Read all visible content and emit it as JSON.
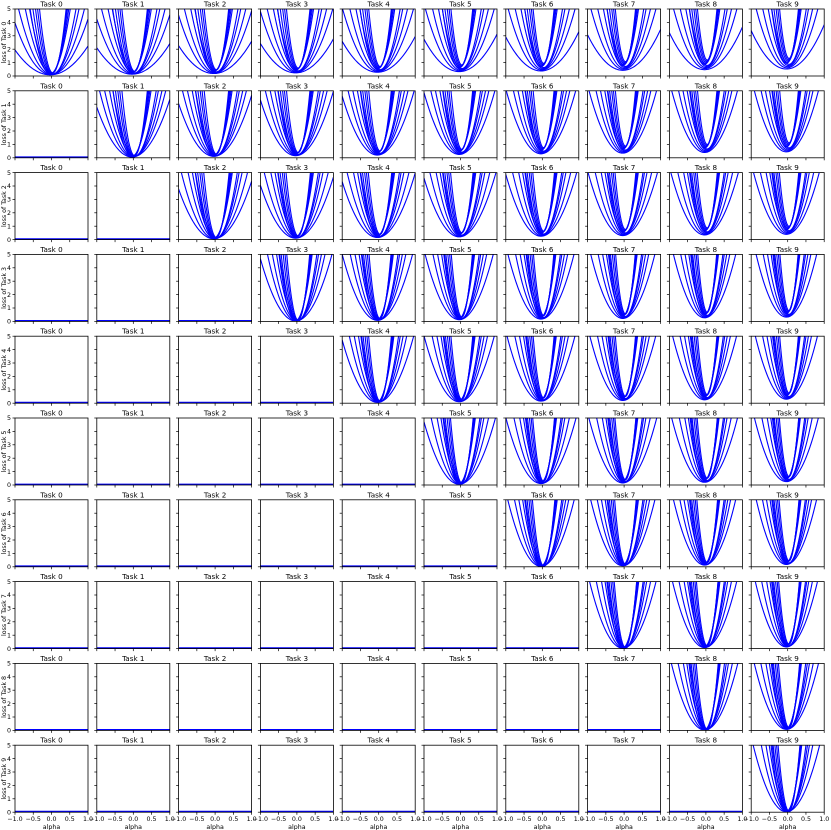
{
  "chart_data": {
    "type": "line",
    "grid_rows": 10,
    "grid_cols": 10,
    "col_titles": [
      "Task 0",
      "Task 1",
      "Task 2",
      "Task 3",
      "Task 4",
      "Task 5",
      "Task 6",
      "Task 7",
      "Task 8",
      "Task 9"
    ],
    "row_ylabels": [
      "loss of Task 0",
      "loss of Task 1",
      "loss of Task 2",
      "loss of Task 3",
      "loss of Task 4",
      "loss of Task 5",
      "loss of Task 6",
      "loss of Task 7",
      "loss of Task 8",
      "loss of Task 9"
    ],
    "xlabel": "alpha",
    "x_ticks": [
      "−1.0",
      "−0.5",
      "0.0",
      "0.5",
      "1.0"
    ],
    "y_ticks": [
      "0",
      "1",
      "2",
      "3",
      "4",
      "5"
    ],
    "xlim": [
      -1.0,
      1.0
    ],
    "ylim": [
      0,
      5
    ],
    "line_color": "#0000ff",
    "grid": false,
    "layout": "lower-triangle panels (column < row) are flat lines at 0; diagonal and upper panels show ~10 parabolic curves each",
    "curve_params_by_row": [
      {
        "min_base": 0.15,
        "curv": [
          2,
          4,
          6,
          9,
          12,
          16,
          20,
          25,
          30,
          36
        ]
      },
      {
        "min_base": 0.1,
        "curv": [
          4,
          6,
          8,
          11,
          14,
          18,
          22,
          27,
          32,
          40
        ]
      },
      {
        "min_base": 0.1,
        "curv": [
          4,
          6,
          9,
          12,
          15,
          19,
          23,
          28,
          33,
          40
        ]
      },
      {
        "min_base": 0.05,
        "curv": [
          5,
          8,
          11,
          15,
          19,
          24,
          29,
          35,
          42,
          50
        ]
      },
      {
        "min_base": 0.1,
        "curv": [
          5,
          8,
          11,
          15,
          19,
          24,
          29,
          35,
          42,
          50
        ]
      },
      {
        "min_base": 0.1,
        "curv": [
          5,
          8,
          12,
          16,
          20,
          25,
          30,
          36,
          43,
          50
        ]
      },
      {
        "min_base": 0.05,
        "curv": [
          6,
          9,
          12,
          16,
          20,
          25,
          31,
          37,
          44,
          52
        ]
      },
      {
        "min_base": 0.05,
        "curv": [
          6,
          9,
          13,
          17,
          21,
          26,
          32,
          38,
          45,
          52
        ]
      },
      {
        "min_base": 0.05,
        "curv": [
          6,
          9,
          13,
          17,
          22,
          27,
          33,
          39,
          46,
          54
        ]
      },
      {
        "min_base": 0.05,
        "curv": [
          6,
          10,
          14,
          18,
          23,
          28,
          34,
          40,
          47,
          55
        ]
      }
    ],
    "upper_min_step": 0.08,
    "tight_curves_min": 0.5
  }
}
